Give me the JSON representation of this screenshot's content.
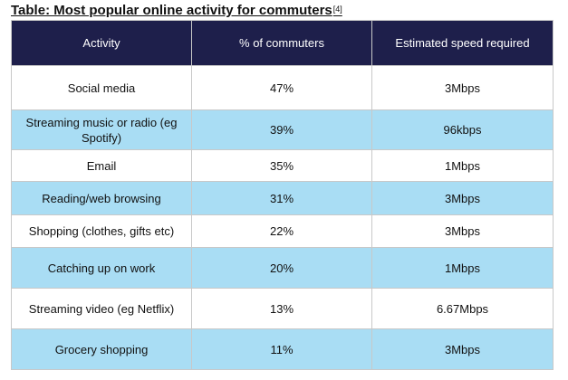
{
  "title": {
    "text": "Table: Most popular online activity for commuters",
    "footnote": "[4]"
  },
  "table": {
    "headers": [
      "Activity",
      "% of commuters",
      "Estimated speed required"
    ],
    "rows": [
      {
        "activity": "Social media",
        "percent": "47%",
        "speed": "3Mbps"
      },
      {
        "activity": "Streaming music or radio (eg Spotify)",
        "percent": "39%",
        "speed": "96kbps"
      },
      {
        "activity": "Email",
        "percent": "35%",
        "speed": "1Mbps"
      },
      {
        "activity": "Reading/web browsing",
        "percent": "31%",
        "speed": "3Mbps"
      },
      {
        "activity": "Shopping (clothes, gifts etc)",
        "percent": "22%",
        "speed": "3Mbps"
      },
      {
        "activity": "Catching up on work",
        "percent": "20%",
        "speed": "1Mbps"
      },
      {
        "activity": "Streaming video (eg Netflix)",
        "percent": "13%",
        "speed": "6.67Mbps"
      },
      {
        "activity": "Grocery shopping",
        "percent": "11%",
        "speed": "3Mbps"
      }
    ],
    "colors": {
      "header_bg": "#1e1f4b",
      "header_text": "#ffffff",
      "row_odd": "#ffffff",
      "row_even": "#a9ddf4"
    }
  }
}
